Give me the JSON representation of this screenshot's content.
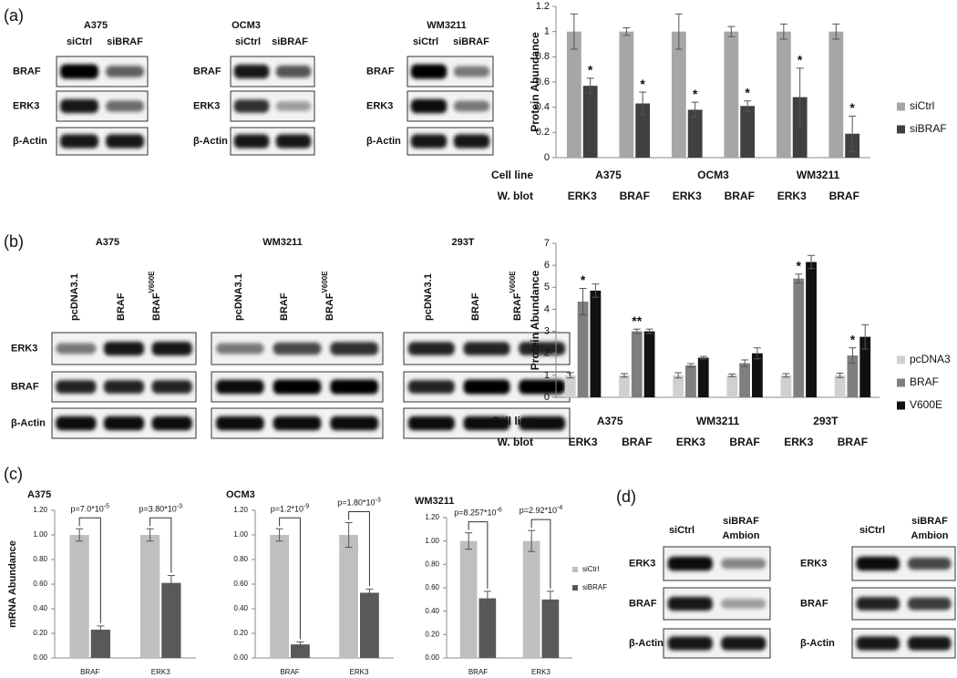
{
  "panels": [
    "(a)",
    "(b)",
    "(c)",
    "(d)"
  ],
  "blots": [
    {
      "title": "A375",
      "lanes": [
        "siCtrl",
        "siBRAF"
      ],
      "rows": [
        "BRAF",
        "ERK3",
        "β-Actin"
      ]
    },
    {
      "title": "OCM3",
      "lanes": [
        "siCtrl",
        "siBRAF"
      ],
      "rows": [
        "BRAF",
        "ERK3",
        "β-Actin"
      ]
    },
    {
      "title": "WM3211",
      "lanes": [
        "siCtrl",
        "siBRAF"
      ],
      "rows": [
        "BRAF",
        "ERK3",
        "β-Actin"
      ]
    },
    {
      "title": "A375",
      "lanes": [
        "pcDNA3.1",
        "BRAF",
        {
          "text": "BRAF",
          "sup": "V600E"
        }
      ],
      "rows": [
        "ERK3",
        "BRAF",
        "β-Actin"
      ]
    },
    {
      "title": "WM3211",
      "lanes": [
        "pcDNA3.1",
        "BRAF",
        {
          "text": "BRAF",
          "sup": "V600E"
        }
      ]
    },
    {
      "title": "293T",
      "lanes": [
        "pcDNA3.1",
        "BRAF",
        {
          "text": "BRAF",
          "sup": "V600E"
        }
      ]
    },
    {
      "lanes": [
        "siCtrl",
        {
          "text": "siBRAF",
          "line2": "Ambion"
        }
      ],
      "rows": [
        "ERK3",
        "BRAF",
        "β-Actin"
      ]
    },
    {
      "lanes": [
        "siCtrl",
        {
          "text": "siBRAF",
          "line2": "Ambion"
        }
      ],
      "rows": [
        "ERK3",
        "BRAF",
        "β-Actin"
      ]
    }
  ],
  "chart_data": [
    {
      "type": "bar",
      "ylabel": "Protein Abundance",
      "ylim": [
        0,
        1.2
      ],
      "yticks": [
        0,
        0.2,
        0.4,
        0.6,
        0.8,
        1,
        1.2
      ],
      "row_labels": [
        "Cell line",
        "W. blot"
      ],
      "groups": [
        "A375",
        "OCM3",
        "WM3211"
      ],
      "categories": [
        "ERK3",
        "BRAF",
        "ERK3",
        "BRAF",
        "ERK3",
        "BRAF"
      ],
      "series": [
        {
          "name": "siCtrl",
          "color": "#a6a6a6",
          "values": [
            1,
            1,
            1,
            1,
            1,
            1
          ],
          "errors": [
            0.14,
            0.03,
            0.14,
            0.04,
            0.06,
            0.06
          ]
        },
        {
          "name": "siBRAF",
          "color": "#404040",
          "values": [
            0.57,
            0.43,
            0.38,
            0.41,
            0.48,
            0.19
          ],
          "errors": [
            0.06,
            0.09,
            0.06,
            0.04,
            0.23,
            0.14
          ]
        }
      ],
      "annotations": [
        "*",
        "*",
        "*",
        "*",
        "*",
        "*"
      ],
      "legend": "right"
    },
    {
      "type": "bar",
      "ylabel": "Protein Abundance",
      "ylim": [
        0,
        7
      ],
      "yticks": [
        0,
        1,
        2,
        3,
        4,
        5,
        6,
        7
      ],
      "row_labels": [
        "Cell line",
        "W. blot"
      ],
      "groups": [
        "A375",
        "WM3211",
        "293T"
      ],
      "categories": [
        "ERK3",
        "BRAF",
        "ERK3",
        "BRAF",
        "ERK3",
        "BRAF"
      ],
      "series": [
        {
          "name": "pcDNA3",
          "color": "#d0d0d0",
          "values": [
            1,
            1,
            1,
            1,
            1,
            1
          ],
          "errors": [
            0.12,
            0.08,
            0.12,
            0.06,
            0.08,
            0.1
          ]
        },
        {
          "name": "BRAF",
          "color": "#7f7f7f",
          "values": [
            4.35,
            3,
            1.45,
            1.55,
            5.4,
            1.9
          ],
          "errors": [
            0.6,
            0.1,
            0.08,
            0.15,
            0.2,
            0.35
          ]
        },
        {
          "name": "V600E",
          "color": "#111111",
          "values": [
            4.85,
            3,
            1.8,
            2,
            6.15,
            2.75
          ],
          "errors": [
            0.3,
            0.1,
            0.06,
            0.25,
            0.3,
            0.55
          ]
        }
      ],
      "annotations": [
        "*",
        "**",
        null,
        null,
        "*",
        "*"
      ],
      "legend": "right"
    },
    {
      "type": "bar",
      "title": "A375",
      "ylabel": "mRNA Abundance",
      "ylim": [
        0,
        1.2
      ],
      "yticks": [
        {
          "value": 0,
          "label": "0.00"
        },
        {
          "value": 0.2,
          "label": "0.20"
        },
        {
          "value": 0.4,
          "label": "0.40"
        },
        {
          "value": 0.6,
          "label": "0.60"
        },
        {
          "value": 0.8,
          "label": "0.80"
        },
        {
          "value": 1,
          "label": "1.00"
        },
        {
          "value": 1.2,
          "label": "1.20"
        }
      ],
      "categories": [
        "BRAF",
        "ERK3"
      ],
      "series": [
        {
          "name": "siCtrl",
          "color": "#bfbfbf",
          "values": [
            1,
            1
          ],
          "errors": [
            0.05,
            0.05
          ]
        },
        {
          "name": "siBRAF",
          "color": "#595959",
          "values": [
            0.23,
            0.61
          ],
          "errors": [
            0.03,
            0.06
          ]
        }
      ],
      "pvalues": [
        {
          "text": "p=7.0*10",
          "exp": "-5"
        },
        {
          "text": "p=3.80*10",
          "exp": "-3"
        }
      ]
    },
    {
      "type": "bar",
      "title": "OCM3",
      "ylim": [
        0,
        1.2
      ],
      "yticks": [
        {
          "value": 0,
          "label": "0.00"
        },
        {
          "value": 0.2,
          "label": "0.20"
        },
        {
          "value": 0.4,
          "label": "0.40"
        },
        {
          "value": 0.6,
          "label": "0.60"
        },
        {
          "value": 0.8,
          "label": "0.80"
        },
        {
          "value": 1,
          "label": "1.00"
        },
        {
          "value": 1.2,
          "label": "1.20"
        }
      ],
      "categories": [
        "BRAF",
        "ERK3"
      ],
      "series": [
        {
          "name": "siCtrl",
          "color": "#bfbfbf",
          "values": [
            1,
            1
          ],
          "errors": [
            0.05,
            0.1
          ]
        },
        {
          "name": "siBRAF",
          "color": "#595959",
          "values": [
            0.11,
            0.53
          ],
          "errors": [
            0.02,
            0.03
          ]
        }
      ],
      "pvalues": [
        {
          "text": "p=1.2*10",
          "exp": "-9"
        },
        {
          "text": "p=1.80*10",
          "exp": "-3"
        }
      ]
    },
    {
      "type": "bar",
      "title": "WM3211",
      "ylim": [
        0,
        1.2
      ],
      "yticks": [
        {
          "value": 0,
          "label": "0.00"
        },
        {
          "value": 0.2,
          "label": "0.20"
        },
        {
          "value": 0.4,
          "label": "0.40"
        },
        {
          "value": 0.6,
          "label": "0.60"
        },
        {
          "value": 0.8,
          "label": "0.80"
        },
        {
          "value": 1,
          "label": "1.00"
        },
        {
          "value": 1.2,
          "label": "1.20"
        }
      ],
      "categories": [
        "BRAF",
        "ERK3"
      ],
      "series": [
        {
          "name": "siCtrl",
          "color": "#bfbfbf",
          "values": [
            1,
            1
          ],
          "errors": [
            0.07,
            0.09
          ]
        },
        {
          "name": "siBRAF",
          "color": "#595959",
          "values": [
            0.51,
            0.5
          ],
          "errors": [
            0.06,
            0.07
          ]
        }
      ],
      "pvalues": [
        {
          "text": "p=8.257*10",
          "exp": "-6"
        },
        {
          "text": "p=2.92*10",
          "exp": "-4"
        }
      ],
      "legend": "right"
    }
  ]
}
